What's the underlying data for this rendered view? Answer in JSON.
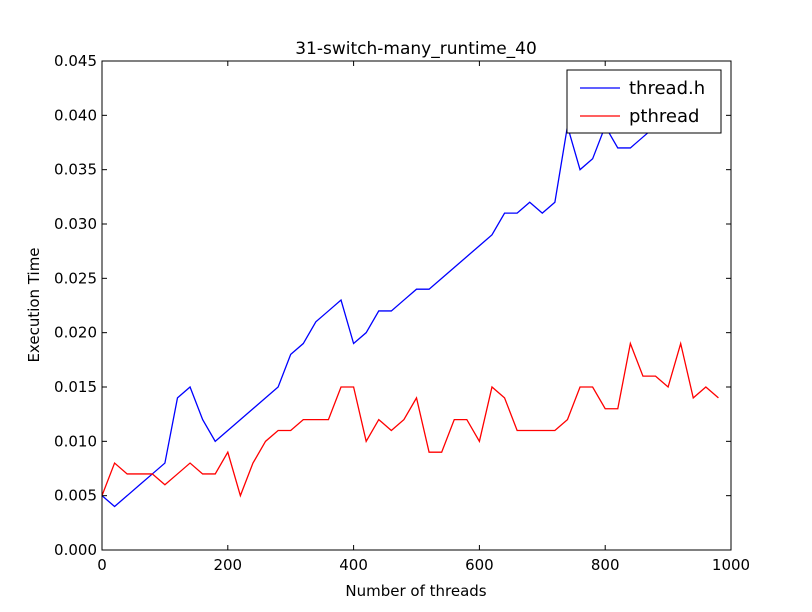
{
  "chart_data": {
    "type": "line",
    "title": "31-switch-many_runtime_40",
    "xlabel": "Number of threads",
    "ylabel": "Execution Time",
    "xlim": [
      0,
      1000
    ],
    "ylim": [
      0,
      0.045
    ],
    "xticks": [
      0,
      200,
      400,
      600,
      800,
      1000
    ],
    "xtick_labels": [
      "0",
      "200",
      "400",
      "600",
      "800",
      "1000"
    ],
    "yticks": [
      0,
      0.005,
      0.01,
      0.015,
      0.02,
      0.025,
      0.03,
      0.035,
      0.04,
      0.045
    ],
    "ytick_labels": [
      "0.000",
      "0.005",
      "0.010",
      "0.015",
      "0.020",
      "0.025",
      "0.030",
      "0.035",
      "0.040",
      "0.045"
    ],
    "grid": false,
    "legend_position": "top-right",
    "x": [
      0,
      20,
      40,
      60,
      80,
      100,
      120,
      140,
      160,
      180,
      200,
      220,
      240,
      260,
      280,
      300,
      320,
      340,
      360,
      380,
      400,
      420,
      440,
      460,
      480,
      500,
      520,
      540,
      560,
      580,
      600,
      620,
      640,
      660,
      680,
      700,
      720,
      740,
      760,
      780,
      800,
      820,
      840,
      860,
      880,
      900,
      920,
      940,
      960,
      980
    ],
    "series": [
      {
        "name": "thread.h",
        "color": "#0000ff",
        "values": [
          0.005,
          0.004,
          0.005,
          0.006,
          0.007,
          0.008,
          0.014,
          0.015,
          0.012,
          0.01,
          0.011,
          0.012,
          0.013,
          0.014,
          0.015,
          0.018,
          0.019,
          0.021,
          0.022,
          0.023,
          0.019,
          0.02,
          0.022,
          0.022,
          0.023,
          0.024,
          0.024,
          0.025,
          0.026,
          0.027,
          0.028,
          0.029,
          0.031,
          0.031,
          0.032,
          0.031,
          0.032,
          0.039,
          0.035,
          0.036,
          0.039,
          0.037,
          0.037,
          0.038,
          0.039,
          0.039,
          0.04,
          0.04,
          0.041,
          0.041
        ]
      },
      {
        "name": "pthread",
        "color": "#ff0000",
        "values": [
          0.005,
          0.008,
          0.007,
          0.007,
          0.007,
          0.006,
          0.007,
          0.008,
          0.007,
          0.007,
          0.009,
          0.005,
          0.008,
          0.01,
          0.011,
          0.011,
          0.012,
          0.012,
          0.012,
          0.015,
          0.015,
          0.01,
          0.012,
          0.011,
          0.012,
          0.014,
          0.009,
          0.009,
          0.012,
          0.012,
          0.01,
          0.015,
          0.014,
          0.011,
          0.011,
          0.011,
          0.011,
          0.012,
          0.015,
          0.015,
          0.013,
          0.013,
          0.019,
          0.016,
          0.016,
          0.015,
          0.019,
          0.014,
          0.015,
          0.014
        ]
      }
    ]
  }
}
